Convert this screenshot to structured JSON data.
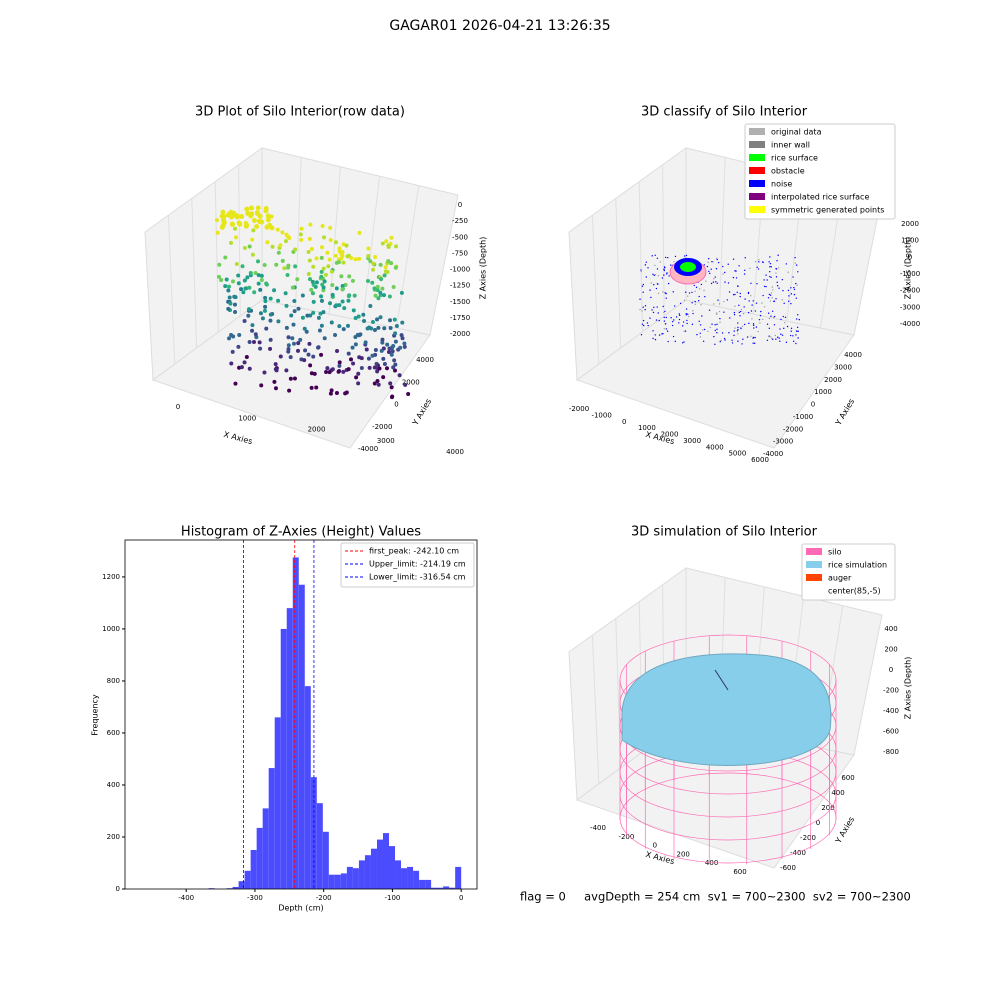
{
  "title": "GAGAR01 2026-04-21 13:26:35",
  "chart_data": [
    {
      "type": "scatter3d",
      "title": "3D Plot of Silo Interior(row data)",
      "xlabel": "X Axies",
      "ylabel": "Y Axies",
      "zlabel": "Z Axies (Depth)",
      "xticks": [
        0,
        1000,
        2000,
        3000,
        4000
      ],
      "yticks": [
        -4000,
        -2000,
        0,
        2000,
        4000
      ],
      "zticks": [
        0,
        -250,
        -500,
        -750,
        -1000,
        -1250,
        -1500,
        -1750,
        -2000
      ]
    },
    {
      "type": "scatter3d",
      "title": "3D classify of Silo Interior",
      "xlabel": "X Axies",
      "ylabel": "Y Axies",
      "zlabel": "Z Axies (Depth)",
      "xticks": [
        -2000,
        -1000,
        0,
        1000,
        2000,
        3000,
        4000,
        5000,
        6000
      ],
      "yticks": [
        -4000,
        -3000,
        -2000,
        -1000,
        0,
        1000,
        2000,
        3000,
        4000
      ],
      "zticks": [
        -4000,
        -3000,
        -2000,
        -1000,
        0,
        1000,
        2000
      ],
      "legend": [
        {
          "name": "original data",
          "color": "#b0b0b0"
        },
        {
          "name": "inner wall",
          "color": "#808080"
        },
        {
          "name": "rice surface",
          "color": "#00ff00"
        },
        {
          "name": "obstacle",
          "color": "#ff0000"
        },
        {
          "name": "noise",
          "color": "#0000ff"
        },
        {
          "name": "interpolated rice surface",
          "color": "#800080"
        },
        {
          "name": "symmetric generated points",
          "color": "#ffff00"
        }
      ]
    },
    {
      "type": "histogram",
      "title": "Histogram of Z-Axies (Height) Values",
      "xlabel": "Depth (cm)",
      "ylabel": "Frequency",
      "color": "#4c4cff",
      "bins": [
        -472.5,
        -463.75,
        -455,
        -446.25,
        -437.5,
        -428.75,
        -420,
        -411.25,
        -402.5,
        -393.75,
        -385,
        -376.25,
        -367.5,
        -358.75,
        -350,
        -341.25,
        -332.5,
        -323.75,
        -315,
        -306.25,
        -297.5,
        -288.75,
        -280,
        -271.25,
        -262.5,
        -253.75,
        -245,
        -236.25,
        -227.5,
        -218.75,
        -210,
        -201.25,
        -192.5,
        -183.75,
        -175,
        -166.25,
        -157.5,
        -148.75,
        -140,
        -131.25,
        -122.5,
        -113.75,
        -105,
        -96.25,
        -87.5,
        -78.75,
        -70,
        -61.25,
        -52.5,
        -43.75,
        -35,
        -26.25,
        -17.5,
        -8.75,
        0
      ],
      "values": [
        0,
        0,
        0,
        0,
        0,
        0,
        0,
        0,
        0,
        0,
        0,
        0,
        3,
        0,
        0,
        3,
        8,
        30,
        70,
        150,
        235,
        310,
        465,
        660,
        1000,
        1080,
        1275,
        1170,
        780,
        430,
        330,
        220,
        55,
        55,
        60,
        85,
        80,
        110,
        130,
        155,
        190,
        215,
        165,
        110,
        80,
        85,
        70,
        35,
        35,
        5,
        5,
        10,
        5,
        85
      ],
      "xlim": [
        -489,
        23
      ],
      "ylim": [
        0,
        1342
      ],
      "xticks": [
        -400,
        -300,
        -200,
        -100,
        0
      ],
      "yticks": [
        0,
        200,
        400,
        600,
        800,
        1000,
        1200
      ],
      "vlines": [
        {
          "value": -242.1,
          "label": "first_peak: -242.10 cm",
          "color": "#ff0000"
        },
        {
          "value": -214.19,
          "label": "Upper_limit: -214.19 cm",
          "color": "#0000ff"
        },
        {
          "value": -316.54,
          "label": "Lower_limit: -316.54 cm",
          "color": "#0000ff"
        }
      ]
    },
    {
      "type": "surface3d",
      "title": "3D simulation of Silo Interior",
      "xlabel": "X Axies",
      "ylabel": "Y Axies",
      "zlabel": "Z Axies (Depth)",
      "xticks": [
        -400,
        -200,
        0,
        200,
        400,
        600
      ],
      "yticks": [
        -600,
        -400,
        -200,
        0,
        200,
        400,
        600
      ],
      "zticks": [
        -800,
        -600,
        -400,
        -200,
        0,
        200,
        400
      ],
      "legend": [
        {
          "name": "silo",
          "color": "#ff69b4"
        },
        {
          "name": "rice simulation",
          "color": "#87ceeb"
        },
        {
          "name": "auger",
          "color": "#ff4500"
        },
        {
          "name": "center(85,-5)",
          "color": "#ffffff"
        }
      ]
    }
  ],
  "footer": "flag = 0     avgDepth = 254 cm  sv1 = 700~2300  sv2 = 700~2300"
}
